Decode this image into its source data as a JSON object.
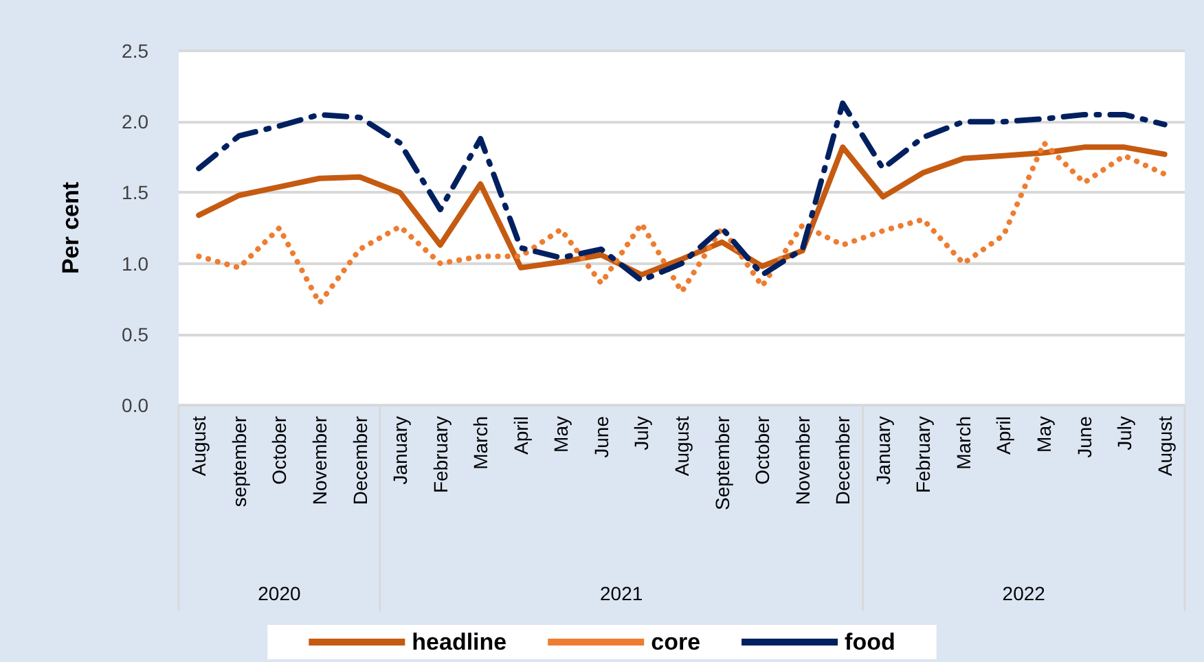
{
  "chart_data": {
    "type": "line",
    "ylabel": "Per cent",
    "categories": [
      "August",
      "september",
      "October",
      "November",
      "December",
      "January",
      "February",
      "March",
      "April",
      "May",
      "June",
      "July",
      "August",
      "September",
      "October",
      "November",
      "December",
      "January",
      "February",
      "March",
      "April",
      "May",
      "June",
      "July",
      "August"
    ],
    "series": [
      {
        "name": "headline",
        "color": "#c55a11",
        "line_style": "solid",
        "values": [
          1.34,
          1.48,
          1.54,
          1.6,
          1.61,
          1.5,
          1.13,
          1.56,
          0.97,
          1.01,
          1.06,
          0.92,
          1.03,
          1.15,
          0.98,
          1.09,
          1.82,
          1.47,
          1.64,
          1.74,
          1.76,
          1.78,
          1.82,
          1.82,
          1.77
        ]
      },
      {
        "name": "core",
        "color": "#ed7d31",
        "line_style": "dotted",
        "values": [
          1.05,
          0.97,
          1.25,
          0.72,
          1.1,
          1.26,
          1.0,
          1.05,
          1.05,
          1.24,
          0.86,
          1.28,
          0.8,
          1.25,
          0.84,
          1.27,
          1.13,
          1.23,
          1.31,
          1.0,
          1.2,
          1.85,
          1.57,
          1.76,
          1.63
        ]
      },
      {
        "name": "food",
        "color": "#002060",
        "line_style": "dashed",
        "values": [
          1.67,
          1.9,
          1.97,
          2.05,
          2.03,
          1.85,
          1.38,
          1.88,
          1.11,
          1.04,
          1.1,
          0.88,
          1.0,
          1.25,
          0.92,
          1.1,
          2.13,
          1.67,
          1.89,
          2.0,
          2.0,
          2.02,
          2.05,
          2.05,
          1.98
        ]
      }
    ],
    "ylim": [
      0,
      2.5
    ],
    "yticks": [
      {
        "value": 0,
        "label": "0.0"
      },
      {
        "value": 0.5,
        "label": "0.5"
      },
      {
        "value": 1,
        "label": "1.0"
      },
      {
        "value": 1.5,
        "label": "1.5"
      },
      {
        "value": 2,
        "label": "2.0"
      },
      {
        "value": 2.5,
        "label": "2.5"
      }
    ],
    "grid": "y",
    "legend": "bottom",
    "marker": "none",
    "annotations": [
      "2020",
      "2021",
      "2022"
    ]
  }
}
